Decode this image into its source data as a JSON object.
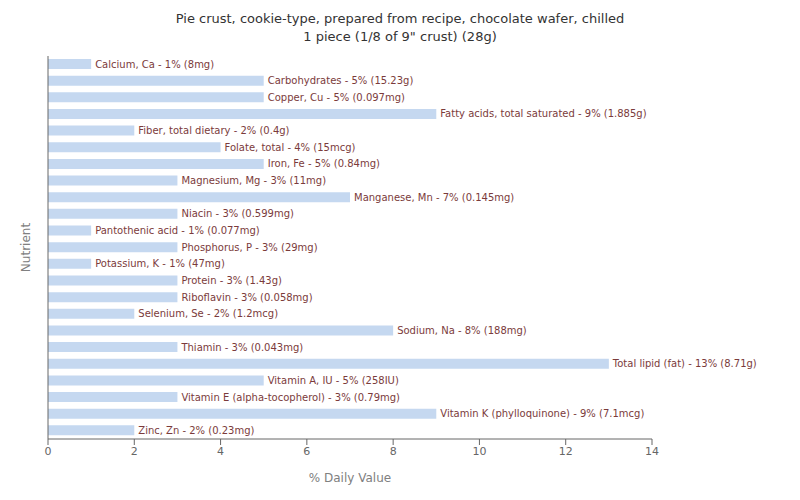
{
  "chart_data": {
    "type": "bar",
    "orientation": "horizontal",
    "title": "Pie crust, cookie-type, prepared from recipe, chocolate wafer, chilled\n1 piece (1/8 of 9\" crust) (28g)",
    "xlabel": "% Daily Value",
    "ylabel": "Nutrient",
    "categories": [
      "Calcium, Ca - 1% (8mg)",
      "Carbohydrates - 5% (15.23g)",
      "Copper, Cu - 5% (0.097mg)",
      "Fatty acids, total saturated - 9% (1.885g)",
      "Fiber, total dietary - 2% (0.4g)",
      "Folate, total - 4% (15mcg)",
      "Iron, Fe - 5% (0.84mg)",
      "Magnesium, Mg - 3% (11mg)",
      "Manganese, Mn - 7% (0.145mg)",
      "Niacin - 3% (0.599mg)",
      "Pantothenic acid - 1% (0.077mg)",
      "Phosphorus, P - 3% (29mg)",
      "Potassium, K - 1% (47mg)",
      "Protein - 3% (1.43g)",
      "Riboflavin - 3% (0.058mg)",
      "Selenium, Se - 2% (1.2mcg)",
      "Sodium, Na - 8% (188mg)",
      "Thiamin - 3% (0.043mg)",
      "Total lipid (fat) - 13% (8.71g)",
      "Vitamin A, IU - 5% (258IU)",
      "Vitamin E (alpha-tocopherol) - 3% (0.79mg)",
      "Vitamin K (phylloquinone) - 9% (7.1mcg)",
      "Zinc, Zn - 2% (0.23mg)"
    ],
    "values": [
      1,
      5,
      5,
      9,
      2,
      4,
      5,
      3,
      7,
      3,
      1,
      3,
      1,
      3,
      3,
      2,
      8,
      3,
      13,
      5,
      3,
      9,
      2
    ],
    "color": "#c5d8f0",
    "xlim": [
      0,
      14
    ],
    "xticks": [
      0,
      2,
      4,
      6,
      8,
      10,
      12,
      14
    ],
    "grid": false,
    "tick_labels": "x"
  }
}
